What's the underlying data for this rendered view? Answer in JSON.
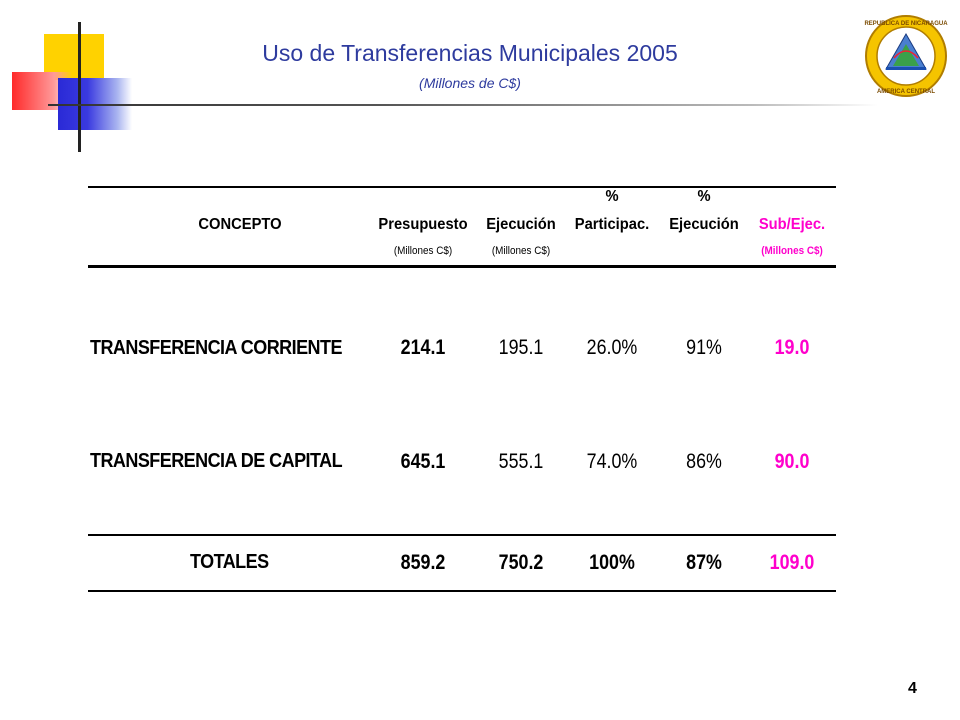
{
  "header": {
    "title": "Uso de Transferencias Municipales 2005",
    "subtitle": "(Millones de C$)"
  },
  "seal": {
    "text_top": "REPUBLICA DE NICARAGUA",
    "text_bottom": "AMERICA CENTRAL"
  },
  "table": {
    "columns": {
      "concepto": "CONCEPTO",
      "presupuesto": "Presupuesto",
      "presupuesto_sub": "(Millones C$)",
      "ejecucion": "Ejecución",
      "ejecucion_sub": "(Millones C$)",
      "particip_pct": "%",
      "particip": "Participac.",
      "ejec_pct": "%",
      "ejec_pct_label": "Ejecución",
      "subejec": "Sub/Ejec.",
      "subejec_sub": "(Millones C$)"
    },
    "rows": [
      {
        "concepto": "TRANSFERENCIA CORRIENTE",
        "presupuesto": "214.1",
        "ejecucion": "195.1",
        "participacion": "26.0%",
        "pct_ejecucion": "91%",
        "sub_ejec": "19.0"
      },
      {
        "concepto": "TRANSFERENCIA DE CAPITAL",
        "presupuesto": "645.1",
        "ejecucion": "555.1",
        "participacion": "74.0%",
        "pct_ejecucion": "86%",
        "sub_ejec": "90.0"
      }
    ],
    "totals": {
      "concepto": "TOTALES",
      "presupuesto": "859.2",
      "ejecucion": "750.2",
      "participacion": "100%",
      "pct_ejecucion": "87%",
      "sub_ejec": "109.0"
    }
  },
  "colors": {
    "title": "#2e3b9e",
    "highlight": "#ff00cc"
  },
  "page_number": "4"
}
